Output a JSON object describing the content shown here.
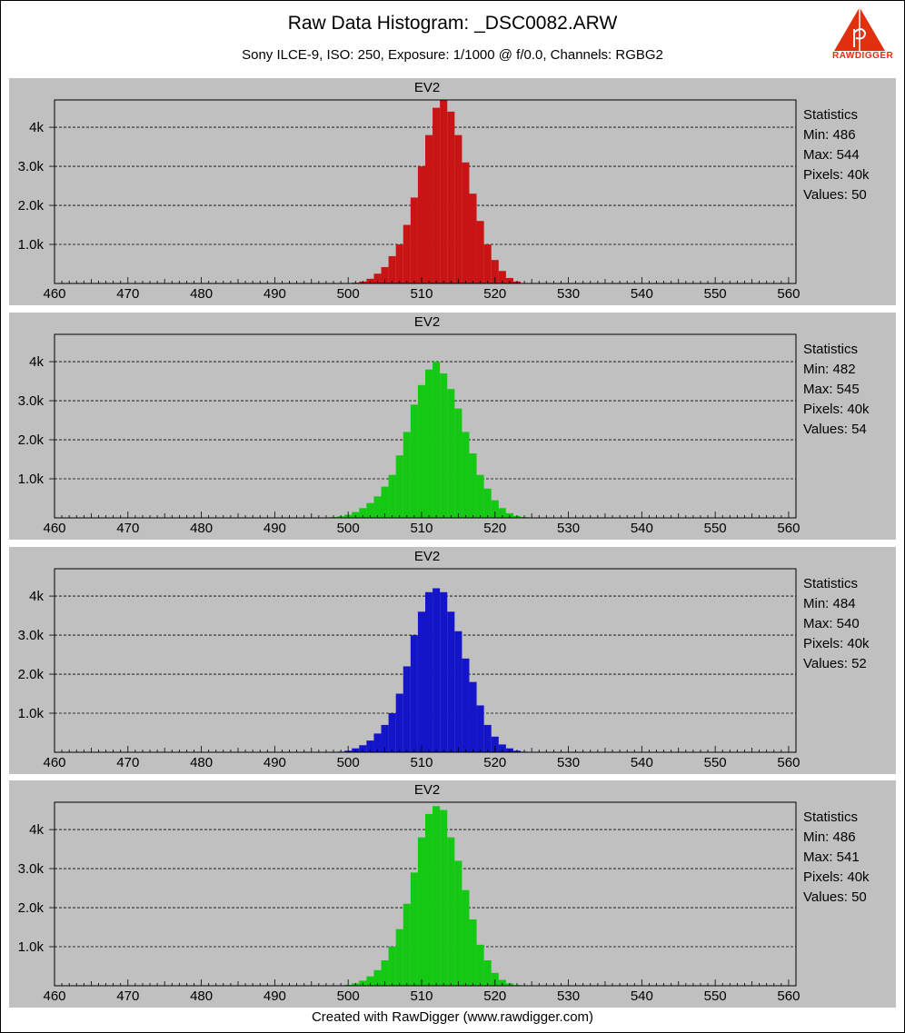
{
  "title": "Raw Data Histogram: _DSC0082.ARW",
  "subtitle": "Sony ILCE-9, ISO: 250, Exposure: 1/1000 @ f/0.0, Channels: RGBG2",
  "footer": "Created with RawDigger (www.rawdigger.com)",
  "logo_text": "RAWDIGGER",
  "colors": {
    "panel_bg": "#c0c0c0",
    "red": "#c81414",
    "green": "#14c814",
    "blue": "#1414c8",
    "logo": "#e03010"
  },
  "chart_data": [
    {
      "type": "bar",
      "title": "EV2",
      "color": "#c81414",
      "xlim": [
        460,
        561
      ],
      "ylim": [
        0,
        4700
      ],
      "xticks": [
        "460",
        "470",
        "480",
        "490",
        "500",
        "510",
        "520",
        "530",
        "540",
        "550",
        "560"
      ],
      "yticks": [
        "1.0k",
        "2.0k",
        "3.0k",
        "4k"
      ],
      "x": [
        501,
        502,
        503,
        504,
        505,
        506,
        507,
        508,
        509,
        510,
        511,
        512,
        513,
        514,
        515,
        516,
        517,
        518,
        519,
        520,
        521,
        522,
        523
      ],
      "values": [
        20,
        50,
        120,
        250,
        420,
        700,
        1000,
        1500,
        2200,
        3000,
        3800,
        4500,
        4700,
        4400,
        3800,
        3100,
        2300,
        1600,
        1000,
        600,
        320,
        140,
        50
      ],
      "statistics": {
        "label": "Statistics",
        "min": "Min: 486",
        "max": "Max: 544",
        "pixels": "Pixels: 40k",
        "values": "Values: 50"
      }
    },
    {
      "type": "bar",
      "title": "EV2",
      "color": "#14c814",
      "xlim": [
        460,
        561
      ],
      "ylim": [
        0,
        4700
      ],
      "xticks": [
        "460",
        "470",
        "480",
        "490",
        "500",
        "510",
        "520",
        "530",
        "540",
        "550",
        "560"
      ],
      "yticks": [
        "1.0k",
        "2.0k",
        "3.0k",
        "4k"
      ],
      "x": [
        498,
        499,
        500,
        501,
        502,
        503,
        504,
        505,
        506,
        507,
        508,
        509,
        510,
        511,
        512,
        513,
        514,
        515,
        516,
        517,
        518,
        519,
        520,
        521,
        522,
        523,
        524
      ],
      "values": [
        20,
        40,
        80,
        150,
        250,
        380,
        550,
        800,
        1100,
        1600,
        2200,
        2900,
        3400,
        3800,
        4000,
        3700,
        3300,
        2800,
        2200,
        1650,
        1100,
        750,
        450,
        250,
        120,
        50,
        20
      ],
      "statistics": {
        "label": "Statistics",
        "min": "Min: 482",
        "max": "Max: 545",
        "pixels": "Pixels: 40k",
        "values": "Values: 54"
      }
    },
    {
      "type": "bar",
      "title": "EV2",
      "color": "#1414c8",
      "xlim": [
        460,
        561
      ],
      "ylim": [
        0,
        4700
      ],
      "xticks": [
        "460",
        "470",
        "480",
        "490",
        "500",
        "510",
        "520",
        "530",
        "540",
        "550",
        "560"
      ],
      "yticks": [
        "1.0k",
        "2.0k",
        "3.0k",
        "4k"
      ],
      "x": [
        499,
        500,
        501,
        502,
        503,
        504,
        505,
        506,
        507,
        508,
        509,
        510,
        511,
        512,
        513,
        514,
        515,
        516,
        517,
        518,
        519,
        520,
        521,
        522,
        523,
        524
      ],
      "values": [
        15,
        40,
        100,
        180,
        300,
        480,
        700,
        1000,
        1500,
        2200,
        3000,
        3600,
        4100,
        4200,
        4100,
        3600,
        3100,
        2400,
        1800,
        1200,
        700,
        400,
        200,
        100,
        40,
        15
      ],
      "statistics": {
        "label": "Statistics",
        "min": "Min: 484",
        "max": "Max: 540",
        "pixels": "Pixels: 40k",
        "values": "Values: 52"
      }
    },
    {
      "type": "bar",
      "title": "EV2",
      "color": "#14c814",
      "xlim": [
        460,
        561
      ],
      "ylim": [
        0,
        4700
      ],
      "xticks": [
        "460",
        "470",
        "480",
        "490",
        "500",
        "510",
        "520",
        "530",
        "540",
        "550",
        "560"
      ],
      "yticks": [
        "1.0k",
        "2.0k",
        "3.0k",
        "4k"
      ],
      "x": [
        500,
        501,
        502,
        503,
        504,
        505,
        506,
        507,
        508,
        509,
        510,
        511,
        512,
        513,
        514,
        515,
        516,
        517,
        518,
        519,
        520,
        521,
        522,
        523
      ],
      "values": [
        25,
        60,
        130,
        240,
        400,
        650,
        1000,
        1450,
        2100,
        2900,
        3800,
        4400,
        4600,
        4500,
        3800,
        3200,
        2450,
        1700,
        1050,
        650,
        330,
        150,
        60,
        20
      ],
      "statistics": {
        "label": "Statistics",
        "min": "Min: 486",
        "max": "Max: 541",
        "pixels": "Pixels: 40k",
        "values": "Values: 50"
      }
    }
  ]
}
